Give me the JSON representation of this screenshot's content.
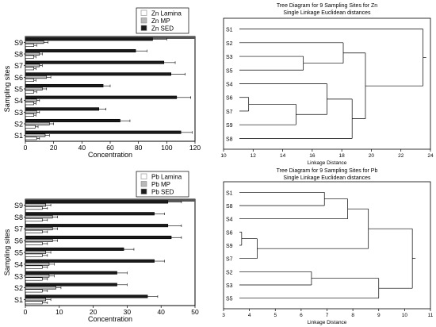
{
  "chart_data": [
    {
      "type": "bar",
      "orientation": "horizontal",
      "categories": [
        "S1",
        "S2",
        "S3",
        "S4",
        "S5",
        "S6",
        "S7",
        "S8",
        "S9"
      ],
      "xlabel": "Concentration",
      "ylabel": "Sampling sites",
      "xlim": [
        0,
        120
      ],
      "xticks": [
        "0",
        "20",
        "40",
        "60",
        "80",
        "100",
        "120"
      ],
      "legend_position": "top-center",
      "series": [
        {
          "name": "Zn Lamina",
          "color": "#ffffff",
          "values": [
            8,
            7,
            6,
            6,
            6,
            6,
            6,
            6,
            6
          ],
          "errors": [
            2,
            2,
            1.5,
            1.5,
            2,
            1.5,
            1.5,
            1.5,
            2
          ]
        },
        {
          "name": "Zn MP",
          "color": "#b8b8b8",
          "values": [
            14,
            17,
            8,
            8,
            12,
            15,
            10,
            10,
            13
          ],
          "errors": [
            3,
            3,
            2,
            2,
            3,
            3,
            2,
            2,
            3
          ]
        },
        {
          "name": "Zn SED",
          "color": "#1a1a1a",
          "values": [
            110,
            67,
            52,
            107,
            55,
            103,
            98,
            78,
            90
          ],
          "errors": [
            8,
            7,
            5,
            10,
            5,
            10,
            8,
            8,
            10
          ]
        }
      ]
    },
    {
      "type": "dendrogram",
      "title": "Tree Diagram for 9 Sampling Sites for Zn",
      "subtitle": "Single Linkage Euclidean distances",
      "xlabel": "Linkage Distance",
      "xlim": [
        10,
        24
      ],
      "xticks": [
        "10",
        "12",
        "14",
        "16",
        "18",
        "20",
        "22",
        "24"
      ],
      "leaves": [
        "S1",
        "S2",
        "S3",
        "S5",
        "S4",
        "S6",
        "S7",
        "S9",
        "S8"
      ],
      "merges": [
        {
          "a": "S3",
          "b": "S5",
          "height": 15.4
        },
        {
          "a": "S2",
          "b": "S3-S5",
          "height": 18.1
        },
        {
          "a": "S6",
          "b": "S7",
          "height": 11.7
        },
        {
          "a": "S6-S7",
          "b": "S9",
          "height": 14.9
        },
        {
          "a": "S4",
          "b": "S6-S7-S9",
          "height": 17.0
        },
        {
          "a": "S4-S6-S7-S9",
          "b": "S8",
          "height": 18.7
        },
        {
          "a": "S2-S3-S5",
          "b": "S4-S6-S7-S8-S9",
          "height": 19.6
        },
        {
          "a": "S1",
          "b": "rest",
          "height": 23.5
        }
      ]
    },
    {
      "type": "bar",
      "orientation": "horizontal",
      "categories": [
        "S1",
        "S2",
        "S3",
        "S4",
        "S5",
        "S6",
        "S7",
        "S8",
        "S9"
      ],
      "xlabel": "Concentration",
      "ylabel": "Sampling sites",
      "xlim": [
        0,
        50
      ],
      "xticks": [
        "0",
        "10",
        "20",
        "30",
        "40",
        "50"
      ],
      "legend_position": "top-center",
      "series": [
        {
          "name": "Pb Lamina",
          "color": "#ffffff",
          "values": [
            5,
            5,
            5,
            5,
            5,
            5,
            5,
            5,
            5
          ],
          "errors": [
            1.5,
            1.5,
            1.5,
            1.5,
            1.5,
            1.5,
            1.5,
            1.5,
            1.5
          ]
        },
        {
          "name": "Pb MP",
          "color": "#b8b8b8",
          "values": [
            6,
            9,
            7,
            7,
            6,
            8,
            8,
            8,
            6
          ],
          "errors": [
            1.5,
            1.5,
            1.5,
            1.5,
            1.5,
            1.5,
            1.5,
            1.5,
            1.5
          ]
        },
        {
          "name": "Pb SED",
          "color": "#1a1a1a",
          "values": [
            36,
            27,
            27,
            38,
            29,
            43,
            42,
            38,
            42
          ],
          "errors": [
            3,
            3,
            3,
            3,
            3,
            3,
            4,
            3,
            4
          ]
        }
      ]
    },
    {
      "type": "dendrogram",
      "title": "Tree Diagram for 9 Sampling Sites for Pb",
      "subtitle": "Single Linkage Euclidean distances",
      "xlabel": "Linkage Distance",
      "xlim": [
        3,
        11
      ],
      "xticks": [
        "3",
        "4",
        "5",
        "6",
        "7",
        "8",
        "9",
        "10",
        "11"
      ],
      "leaves": [
        "S1",
        "S8",
        "S4",
        "S6",
        "S9",
        "S7",
        "S2",
        "S3",
        "S5"
      ],
      "merges": [
        {
          "a": "S1",
          "b": "S8",
          "height": 6.9
        },
        {
          "a": "S1-S8",
          "b": "S4",
          "height": 7.8
        },
        {
          "a": "S6",
          "b": "S9",
          "height": 3.7
        },
        {
          "a": "S6-S9",
          "b": "S7",
          "height": 4.3
        },
        {
          "a": "S1-S8-S4",
          "b": "S6-S9-S7",
          "height": 8.6
        },
        {
          "a": "S2",
          "b": "S3",
          "height": 6.4
        },
        {
          "a": "S2-S3",
          "b": "S5",
          "height": 9.0
        },
        {
          "a": "S1-S4-S6-S7-S8-S9",
          "b": "S2-S3-S5",
          "height": 10.3
        }
      ]
    }
  ]
}
